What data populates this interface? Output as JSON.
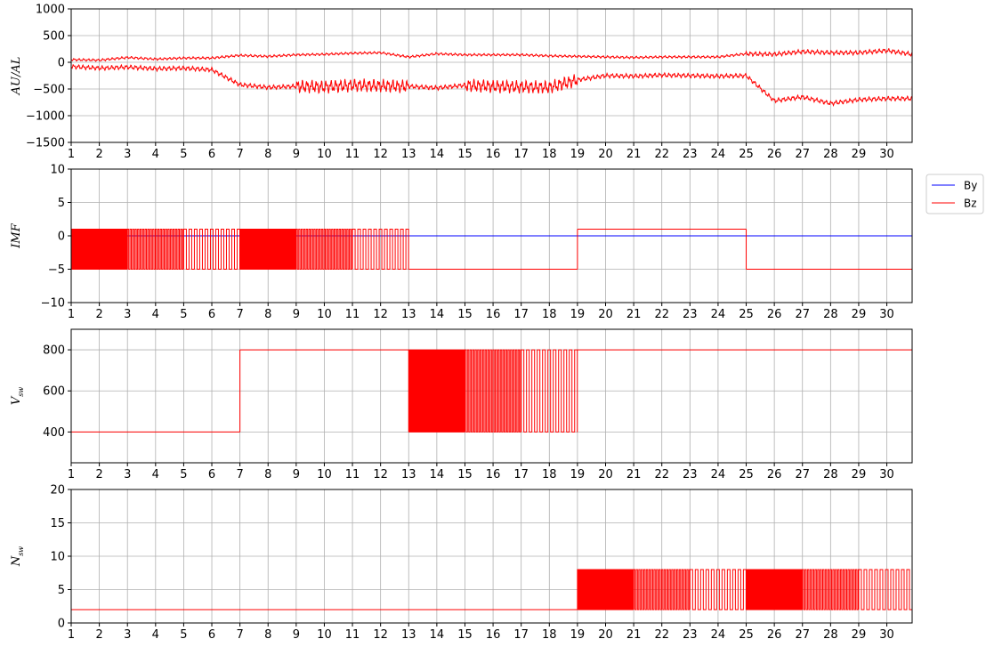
{
  "chart_data": [
    {
      "type": "line",
      "panel": "auroral-index",
      "ylabel": "AU/AL",
      "xlim": [
        1,
        30.9
      ],
      "ylim": [
        -1500,
        1000
      ],
      "yticks": [
        -1500,
        -1000,
        -500,
        0,
        500,
        1000
      ],
      "xticks": [
        1,
        2,
        3,
        4,
        5,
        6,
        7,
        8,
        9,
        10,
        11,
        12,
        13,
        14,
        15,
        16,
        17,
        18,
        19,
        20,
        21,
        22,
        23,
        24,
        25,
        26,
        27,
        28,
        29,
        30
      ],
      "grid": true,
      "series": [
        {
          "name": "",
          "color": "#ff0000",
          "x": [
            1,
            2,
            3,
            4,
            5,
            6,
            7,
            8,
            9,
            10,
            11,
            12,
            13,
            14,
            15,
            16,
            17,
            18,
            19,
            20,
            21,
            22,
            23,
            24,
            25,
            26,
            27,
            28,
            29,
            30,
            30.9
          ],
          "values": [
            50,
            40,
            90,
            60,
            80,
            80,
            130,
            110,
            140,
            150,
            170,
            180,
            100,
            160,
            140,
            140,
            140,
            120,
            110,
            100,
            90,
            100,
            100,
            100,
            160,
            150,
            200,
            180,
            180,
            220,
            150
          ]
        },
        {
          "name": "",
          "color": "#ff0000",
          "x": [
            1,
            2,
            3,
            4,
            5,
            6,
            7,
            8,
            9,
            10,
            11,
            12,
            13,
            14,
            15,
            16,
            17,
            18,
            19,
            20,
            21,
            22,
            23,
            24,
            25,
            26,
            27,
            28,
            29,
            30,
            30.9
          ],
          "values": [
            -80,
            -110,
            -90,
            -120,
            -110,
            -140,
            -420,
            -470,
            -450,
            -460,
            -430,
            -440,
            -450,
            -480,
            -430,
            -450,
            -460,
            -470,
            -330,
            -250,
            -260,
            -240,
            -250,
            -260,
            -250,
            -720,
            -650,
            -770,
            -700,
            -680,
            -680
          ]
        }
      ]
    },
    {
      "type": "line",
      "panel": "imf",
      "ylabel": "IMF",
      "xlim": [
        1,
        30.9
      ],
      "ylim": [
        -10,
        10
      ],
      "yticks": [
        -10,
        -5,
        0,
        5,
        10
      ],
      "xticks": [
        1,
        2,
        3,
        4,
        5,
        6,
        7,
        8,
        9,
        10,
        11,
        12,
        13,
        14,
        15,
        16,
        17,
        18,
        19,
        20,
        21,
        22,
        23,
        24,
        25,
        26,
        27,
        28,
        29,
        30
      ],
      "grid": true,
      "legend": "outside-right",
      "series": [
        {
          "name": "By",
          "color": "#0000ff",
          "segments": [
            {
              "x0": 1,
              "x1": 30.9,
              "value": 0
            }
          ]
        },
        {
          "name": "Bz",
          "color": "#ff0000",
          "oscillations": [
            {
              "x0": 1,
              "x1": 3,
              "hi": 1,
              "lo": -5,
              "period": 0.03
            },
            {
              "x0": 3,
              "x1": 5,
              "hi": 1,
              "lo": -5,
              "period": 0.09
            },
            {
              "x0": 5,
              "x1": 7,
              "hi": 1,
              "lo": -5,
              "period": 0.19
            },
            {
              "x0": 7,
              "x1": 9,
              "hi": 1,
              "lo": -5,
              "period": 0.03
            },
            {
              "x0": 9,
              "x1": 11,
              "hi": 1,
              "lo": -5,
              "period": 0.09
            },
            {
              "x0": 11,
              "x1": 13,
              "hi": 1,
              "lo": -5,
              "period": 0.19
            }
          ],
          "segments": [
            {
              "x0": 13,
              "x1": 19,
              "value": -5
            },
            {
              "x0": 19,
              "x1": 25,
              "value": 1
            },
            {
              "x0": 25,
              "x1": 30.9,
              "value": -5
            }
          ]
        }
      ]
    },
    {
      "type": "line",
      "panel": "solar-wind-speed",
      "ylabel": "V",
      "ylabel_sub": "sw",
      "xlim": [
        1,
        30.9
      ],
      "ylim": [
        250,
        900
      ],
      "yticks": [
        400,
        600,
        800
      ],
      "xticks": [
        1,
        2,
        3,
        4,
        5,
        6,
        7,
        8,
        9,
        10,
        11,
        12,
        13,
        14,
        15,
        16,
        17,
        18,
        19,
        20,
        21,
        22,
        23,
        24,
        25,
        26,
        27,
        28,
        29,
        30
      ],
      "grid": true,
      "series": [
        {
          "name": "",
          "color": "#ff0000",
          "segments": [
            {
              "x0": 1,
              "x1": 7,
              "value": 400
            },
            {
              "x0": 7,
              "x1": 13,
              "value": 800
            },
            {
              "x0": 19,
              "x1": 30.9,
              "value": 800
            }
          ],
          "oscillations": [
            {
              "x0": 13,
              "x1": 15,
              "hi": 800,
              "lo": 400,
              "period": 0.03
            },
            {
              "x0": 15,
              "x1": 17,
              "hi": 800,
              "lo": 400,
              "period": 0.09
            },
            {
              "x0": 17,
              "x1": 19,
              "hi": 800,
              "lo": 400,
              "period": 0.19
            }
          ]
        }
      ]
    },
    {
      "type": "line",
      "panel": "solar-wind-density",
      "ylabel": "N",
      "ylabel_sub": "sw",
      "xlim": [
        1,
        30.9
      ],
      "ylim": [
        0,
        20
      ],
      "yticks": [
        0,
        5,
        10,
        15,
        20
      ],
      "xticks": [
        1,
        2,
        3,
        4,
        5,
        6,
        7,
        8,
        9,
        10,
        11,
        12,
        13,
        14,
        15,
        16,
        17,
        18,
        19,
        20,
        21,
        22,
        23,
        24,
        25,
        26,
        27,
        28,
        29,
        30
      ],
      "grid": true,
      "series": [
        {
          "name": "",
          "color": "#ff0000",
          "segments": [
            {
              "x0": 1,
              "x1": 19,
              "value": 2
            }
          ],
          "oscillations": [
            {
              "x0": 19,
              "x1": 21,
              "hi": 8,
              "lo": 2,
              "period": 0.03
            },
            {
              "x0": 21,
              "x1": 23,
              "hi": 8,
              "lo": 2,
              "period": 0.09
            },
            {
              "x0": 23,
              "x1": 25,
              "hi": 8,
              "lo": 2,
              "period": 0.19
            },
            {
              "x0": 25,
              "x1": 27,
              "hi": 8,
              "lo": 2,
              "period": 0.03
            },
            {
              "x0": 27,
              "x1": 29,
              "hi": 8,
              "lo": 2,
              "period": 0.09
            },
            {
              "x0": 29,
              "x1": 30.9,
              "hi": 8,
              "lo": 2,
              "period": 0.19
            }
          ]
        }
      ]
    }
  ]
}
